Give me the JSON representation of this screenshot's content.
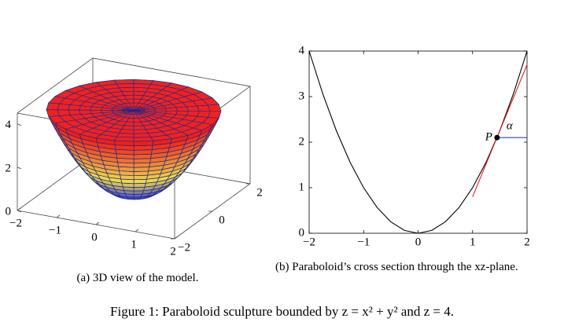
{
  "chart_data": [
    {
      "type": "surface3d",
      "xlim": [
        -2,
        2
      ],
      "ylim": [
        -2,
        2
      ],
      "zlim": [
        0,
        4.5
      ],
      "xticks": [
        {
          "value": -2,
          "label": "−2"
        },
        {
          "value": -1,
          "label": "−1"
        },
        0,
        1,
        2
      ],
      "yticks": [
        {
          "value": -2,
          "label": "−2"
        },
        0,
        2
      ],
      "zticks": [
        0,
        2,
        4
      ],
      "caption": "(a) 3D view of the model."
    },
    {
      "type": "line",
      "xlim": [
        -2,
        2
      ],
      "ylim": [
        0,
        4
      ],
      "xticks": [
        {
          "value": -2,
          "label": "−2"
        },
        {
          "value": -1,
          "label": "−1"
        },
        0,
        1,
        2
      ],
      "yticks": [
        0,
        1,
        2,
        3,
        4
      ],
      "series": [
        {
          "color": "#000000",
          "x": [
            -2,
            -1.75,
            -1.5,
            -1.25,
            -1,
            -0.75,
            -0.5,
            -0.25,
            0,
            0.25,
            0.5,
            0.75,
            1,
            1.25,
            1.5,
            1.75,
            2
          ],
          "values": [
            4,
            3.0625,
            2.25,
            1.5625,
            1,
            0.5625,
            0.25,
            0.0625,
            0,
            0.0625,
            0.25,
            0.5625,
            1,
            1.5625,
            2.25,
            3.0625,
            4
          ]
        },
        {
          "color": "#e02020",
          "x": [
            1,
            2
          ],
          "values": [
            0.8,
            3.7
          ]
        },
        {
          "color": "#2040e0",
          "x": [
            1.45,
            2
          ],
          "values": [
            2.1,
            2.1
          ]
        }
      ],
      "point": {
        "label": "P",
        "x": 1.45,
        "y": 2.1,
        "color": "#000000"
      },
      "angle_label": "α",
      "caption": "(b) Paraboloid’s cross section through the xz-plane."
    }
  ],
  "figure_caption": "Figure 1: Paraboloid sculpture bounded by z = x² + y² and z = 4."
}
